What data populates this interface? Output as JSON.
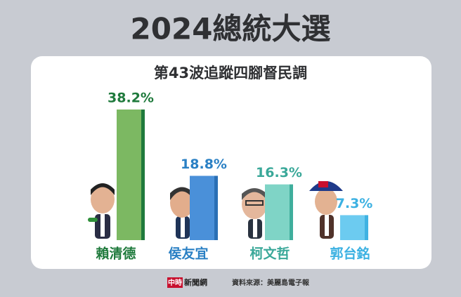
{
  "chart_data": {
    "type": "bar",
    "title": "2024總統大選",
    "subtitle": "第43波追蹤四腳督民調",
    "categories": [
      "賴清德",
      "侯友宜",
      "柯文哲",
      "郭台銘"
    ],
    "values": [
      38.2,
      18.8,
      16.3,
      7.3
    ],
    "value_labels": [
      "38.2%",
      "18.8%",
      "16.3%",
      "7.3%"
    ],
    "colors": [
      "#7cb862",
      "#4a90d9",
      "#7fd4c6",
      "#6ccbf0"
    ],
    "edge_colors": [
      "#1f7a3c",
      "#2a6fb5",
      "#3fae9c",
      "#3fb2e2"
    ],
    "label_colors": [
      "#1f7a3c",
      "#2a80c4",
      "#3aa899",
      "#3cb1e2"
    ],
    "logo_mark": "中時",
    "logo_text": "新聞網",
    "source": "資料來源：美麗島電子報"
  }
}
